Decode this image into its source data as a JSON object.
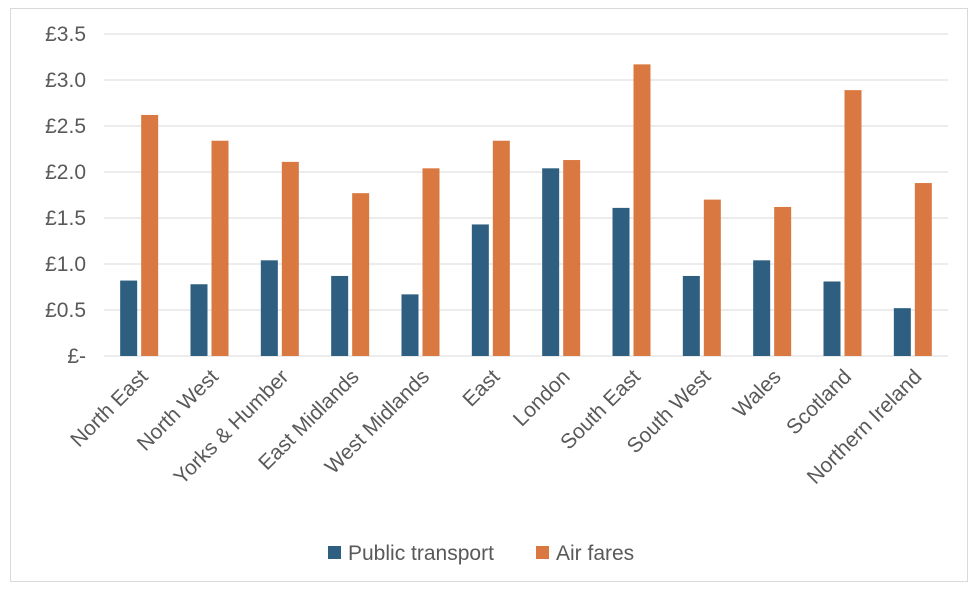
{
  "chart_data": {
    "type": "bar",
    "title": "",
    "xlabel": "",
    "ylabel": "",
    "ylim": [
      0,
      3.5
    ],
    "yticks": [
      0,
      0.5,
      1.0,
      1.5,
      2.0,
      2.5,
      3.0,
      3.5
    ],
    "ytick_labels": [
      "£-",
      "£0.5",
      "£1.0",
      "£1.5",
      "£2.0",
      "£2.5",
      "£3.0",
      "£3.5"
    ],
    "grid": true,
    "legend_position": "bottom",
    "categories": [
      "North East",
      "North West",
      "Yorks & Humber",
      "East Midlands",
      "West Midlands",
      "East",
      "London",
      "South East",
      "South West",
      "Wales",
      "Scotland",
      "Northern Ireland"
    ],
    "series": [
      {
        "name": "Public transport",
        "color": "#2e5f80",
        "values": [
          0.82,
          0.78,
          1.04,
          0.87,
          0.67,
          1.43,
          2.04,
          1.61,
          0.87,
          1.04,
          0.81,
          0.52
        ]
      },
      {
        "name": "Air fares",
        "color": "#d97941",
        "values": [
          2.62,
          2.34,
          2.11,
          1.77,
          2.04,
          2.34,
          2.13,
          3.17,
          1.7,
          1.62,
          2.89,
          1.88
        ]
      }
    ]
  }
}
